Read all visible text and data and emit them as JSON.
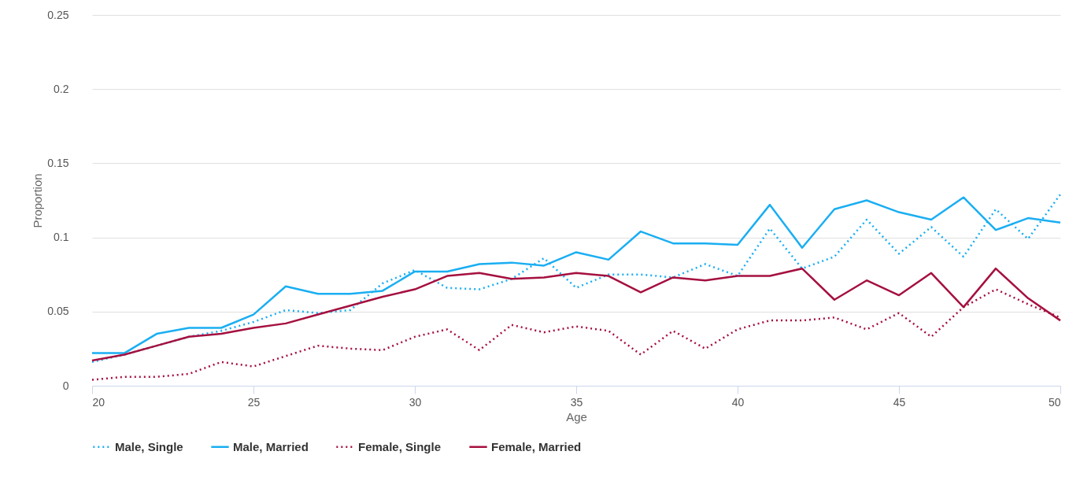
{
  "chart_data": {
    "type": "line",
    "xlabel": "Age",
    "ylabel": "Proportion",
    "x": [
      20,
      21,
      22,
      23,
      24,
      25,
      26,
      27,
      28,
      29,
      30,
      31,
      32,
      33,
      34,
      35,
      36,
      37,
      38,
      39,
      40,
      41,
      42,
      43,
      44,
      45,
      46,
      47,
      48,
      49,
      50
    ],
    "series": [
      {
        "name": "Male, Single",
        "color": "#1aaef2",
        "line_style": "dotted",
        "values": [
          0.016,
          0.021,
          0.027,
          0.033,
          0.037,
          0.043,
          0.051,
          0.049,
          0.051,
          0.069,
          0.078,
          0.066,
          0.065,
          0.072,
          0.086,
          0.066,
          0.075,
          0.075,
          0.073,
          0.082,
          0.074,
          0.106,
          0.079,
          0.087,
          0.112,
          0.089,
          0.107,
          0.087,
          0.119,
          0.099,
          0.129
        ]
      },
      {
        "name": "Male, Married",
        "color": "#1aaef2",
        "line_style": "solid",
        "values": [
          0.022,
          0.022,
          0.035,
          0.039,
          0.039,
          0.048,
          0.067,
          0.062,
          0.062,
          0.064,
          0.077,
          0.077,
          0.082,
          0.083,
          0.081,
          0.09,
          0.085,
          0.104,
          0.096,
          0.096,
          0.095,
          0.122,
          0.093,
          0.119,
          0.125,
          0.117,
          0.112,
          0.127,
          0.105,
          0.113,
          0.11
        ]
      },
      {
        "name": "Female, Single",
        "color": "#a5103f",
        "line_style": "dotted",
        "values": [
          0.004,
          0.006,
          0.006,
          0.008,
          0.016,
          0.013,
          0.02,
          0.027,
          0.025,
          0.024,
          0.033,
          0.038,
          0.024,
          0.041,
          0.036,
          0.04,
          0.037,
          0.021,
          0.037,
          0.025,
          0.038,
          0.044,
          0.044,
          0.046,
          0.038,
          0.049,
          0.033,
          0.053,
          0.065,
          0.055,
          0.046
        ]
      },
      {
        "name": "Female, Married",
        "color": "#a5103f",
        "line_style": "solid",
        "values": [
          0.017,
          0.021,
          0.027,
          0.033,
          0.035,
          0.039,
          0.042,
          0.048,
          0.054,
          0.06,
          0.065,
          0.074,
          0.076,
          0.072,
          0.073,
          0.076,
          0.074,
          0.063,
          0.073,
          0.071,
          0.074,
          0.074,
          0.079,
          0.058,
          0.071,
          0.061,
          0.076,
          0.053,
          0.079,
          0.059,
          0.044
        ]
      }
    ],
    "xlim": [
      20,
      50
    ],
    "xticks": [
      20,
      25,
      30,
      35,
      40,
      45,
      50
    ],
    "ylim": [
      0,
      0.25
    ],
    "yticks": [
      0,
      0.05,
      0.1,
      0.15,
      0.2,
      0.25
    ],
    "grid": "y",
    "legend": "bottom",
    "marker": "none"
  }
}
